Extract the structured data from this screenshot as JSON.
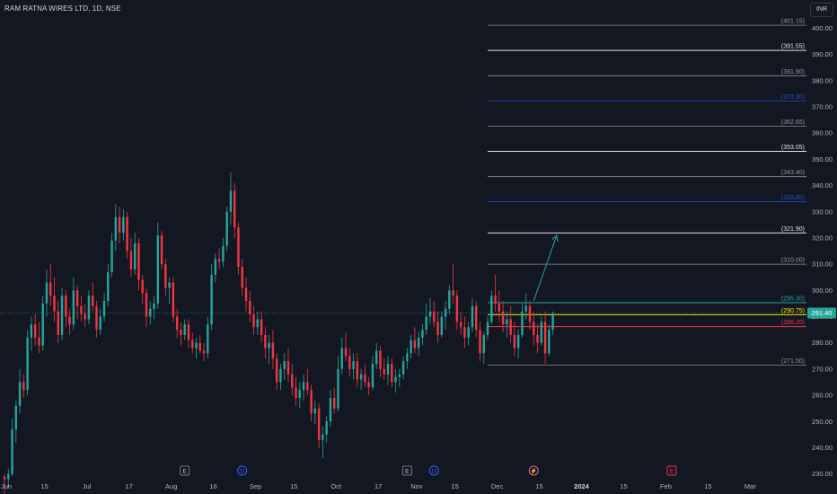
{
  "title": "RAM RATNA WIRES LTD, 1D, NSE",
  "currency": "INR",
  "chart_data": {
    "type": "candlestick",
    "y_axis": {
      "ticks": [
        230,
        240,
        250,
        260,
        270,
        280,
        290,
        300,
        310,
        320,
        330,
        340,
        350,
        360,
        370,
        380,
        390,
        400
      ],
      "labels": [
        "230.00",
        "240.00",
        "250.00",
        "260.00",
        "270.00",
        "280.00",
        "290.00",
        "300.00",
        "310.00",
        "320.00",
        "330.00",
        "340.00",
        "350.00",
        "360.00",
        "370.00",
        "380.00",
        "390.00",
        "400.00"
      ],
      "ylim": [
        228.5,
        406
      ]
    },
    "x_axis": {
      "labels": [
        {
          "text": "Jun",
          "bold": false,
          "idx": 0
        },
        {
          "text": "15",
          "bold": false,
          "idx": 10
        },
        {
          "text": "Jul",
          "bold": false,
          "idx": 21
        },
        {
          "text": "17",
          "bold": false,
          "idx": 32
        },
        {
          "text": "Aug",
          "bold": false,
          "idx": 43
        },
        {
          "text": "16",
          "bold": false,
          "idx": 54
        },
        {
          "text": "Sep",
          "bold": false,
          "idx": 65
        },
        {
          "text": "15",
          "bold": false,
          "idx": 75
        },
        {
          "text": "Oct",
          "bold": false,
          "idx": 86
        },
        {
          "text": "17",
          "bold": false,
          "idx": 97
        },
        {
          "text": "Nov",
          "bold": false,
          "idx": 107
        },
        {
          "text": "15",
          "bold": false,
          "idx": 117
        },
        {
          "text": "Dec",
          "bold": false,
          "idx": 128
        },
        {
          "text": "15",
          "bold": false,
          "idx": 139
        },
        {
          "text": "2024",
          "bold": true,
          "idx": 150
        },
        {
          "text": "15",
          "bold": false,
          "idx": 161
        },
        {
          "text": "Feb",
          "bold": false,
          "idx": 172
        },
        {
          "text": "15",
          "bold": false,
          "idx": 183
        },
        {
          "text": "Mar",
          "bold": false,
          "idx": 194
        }
      ]
    },
    "last_price": 291.4,
    "levels": [
      {
        "price": 401.15,
        "label": "(401.15)",
        "color": "#b2b5be",
        "dim": true
      },
      {
        "price": 391.55,
        "label": "(391.55)",
        "color": "#e0e3eb",
        "dim": false
      },
      {
        "price": 381.9,
        "label": "(381.90)",
        "color": "#b2b5be",
        "dim": true
      },
      {
        "price": 372.3,
        "label": "(372.30)",
        "color": "#2962ff",
        "dim": true
      },
      {
        "price": 362.65,
        "label": "(362.65)",
        "color": "#b2b5be",
        "dim": true
      },
      {
        "price": 353.05,
        "label": "(353.05)",
        "color": "#e0e3eb",
        "dim": false
      },
      {
        "price": 343.4,
        "label": "(343.40)",
        "color": "#b2b5be",
        "dim": true
      },
      {
        "price": 333.8,
        "label": "(333.80)",
        "color": "#2962ff",
        "dim": true
      },
      {
        "price": 321.9,
        "label": "(321.90)",
        "color": "#e0e3eb",
        "dim": false
      },
      {
        "price": 310.0,
        "label": "(310.00)",
        "color": "#b2b5be",
        "dim": true
      },
      {
        "price": 295.3,
        "label": "(295.30)",
        "color": "#26a69a",
        "dim": false
      },
      {
        "price": 290.75,
        "label": "(290.75)",
        "color": "#f7e600",
        "dim": false
      },
      {
        "price": 286.2,
        "label": "(286.20)",
        "color": "#f23645",
        "dim": false
      },
      {
        "price": 271.5,
        "label": "(271.50)",
        "color": "#b2b5be",
        "dim": true
      }
    ],
    "arrow": {
      "from_idx": 138,
      "from_price": 296,
      "to_idx": 144,
      "to_price": 321
    },
    "event_markers": [
      {
        "type": "E",
        "idx": 47
      },
      {
        "type": "D",
        "idx": 62
      },
      {
        "type": "E",
        "idx": 105
      },
      {
        "type": "D",
        "idx": 112
      },
      {
        "type": "⚡",
        "idx": 138
      },
      {
        "type": "E",
        "idx": 174
      }
    ],
    "candles": [
      [
        229,
        230,
        221,
        228
      ],
      [
        228,
        232,
        225,
        230
      ],
      [
        230,
        251,
        229,
        247
      ],
      [
        247,
        258,
        242,
        256
      ],
      [
        256,
        270,
        253,
        265
      ],
      [
        265,
        268,
        259,
        262
      ],
      [
        262,
        285,
        260,
        282
      ],
      [
        282,
        290,
        277,
        287
      ],
      [
        287,
        291,
        279,
        282
      ],
      [
        282,
        288,
        276,
        279
      ],
      [
        279,
        298,
        277,
        295
      ],
      [
        295,
        308,
        290,
        303
      ],
      [
        303,
        310,
        294,
        298
      ],
      [
        298,
        305,
        288,
        292
      ],
      [
        292,
        296,
        280,
        283
      ],
      [
        283,
        301,
        281,
        298
      ],
      [
        298,
        300,
        286,
        290
      ],
      [
        290,
        293,
        283,
        287
      ],
      [
        287,
        305,
        285,
        300
      ],
      [
        300,
        302,
        289,
        294
      ],
      [
        294,
        298,
        288,
        291
      ],
      [
        291,
        295,
        286,
        289
      ],
      [
        289,
        300,
        287,
        298
      ],
      [
        298,
        303,
        292,
        294
      ],
      [
        294,
        296,
        282,
        285
      ],
      [
        285,
        293,
        283,
        290
      ],
      [
        290,
        299,
        288,
        296
      ],
      [
        296,
        310,
        294,
        307
      ],
      [
        307,
        322,
        305,
        319
      ],
      [
        319,
        333,
        315,
        328
      ],
      [
        328,
        332,
        318,
        322
      ],
      [
        322,
        331,
        319,
        328
      ],
      [
        328,
        330,
        312,
        315
      ],
      [
        315,
        320,
        305,
        308
      ],
      [
        308,
        322,
        306,
        318
      ],
      [
        318,
        320,
        300,
        304
      ],
      [
        304,
        306,
        295,
        299
      ],
      [
        299,
        301,
        286,
        290
      ],
      [
        290,
        296,
        287,
        293
      ],
      [
        293,
        298,
        289,
        295
      ],
      [
        295,
        326,
        293,
        321
      ],
      [
        321,
        323,
        308,
        310
      ],
      [
        310,
        312,
        298,
        301
      ],
      [
        301,
        305,
        295,
        303
      ],
      [
        303,
        305,
        288,
        290
      ],
      [
        290,
        293,
        282,
        285
      ],
      [
        285,
        288,
        279,
        283
      ],
      [
        283,
        289,
        281,
        287
      ],
      [
        287,
        289,
        278,
        281
      ],
      [
        281,
        284,
        276,
        278
      ],
      [
        278,
        282,
        274,
        280
      ],
      [
        280,
        283,
        276,
        277
      ],
      [
        277,
        280,
        273,
        276
      ],
      [
        276,
        290,
        274,
        287
      ],
      [
        287,
        310,
        285,
        306
      ],
      [
        306,
        314,
        303,
        312
      ],
      [
        312,
        316,
        308,
        311
      ],
      [
        311,
        320,
        309,
        317
      ],
      [
        317,
        332,
        315,
        330
      ],
      [
        330,
        345,
        325,
        338
      ],
      [
        338,
        341,
        320,
        324
      ],
      [
        324,
        326,
        306,
        309
      ],
      [
        309,
        312,
        298,
        301
      ],
      [
        301,
        305,
        292,
        296
      ],
      [
        296,
        300,
        288,
        291
      ],
      [
        291,
        294,
        283,
        286
      ],
      [
        286,
        292,
        283,
        289
      ],
      [
        289,
        292,
        280,
        283
      ],
      [
        283,
        286,
        274,
        278
      ],
      [
        278,
        283,
        272,
        280
      ],
      [
        280,
        285,
        270,
        274
      ],
      [
        274,
        276,
        262,
        265
      ],
      [
        265,
        272,
        262,
        270
      ],
      [
        270,
        276,
        266,
        273
      ],
      [
        273,
        278,
        265,
        268
      ],
      [
        268,
        272,
        260,
        263
      ],
      [
        263,
        267,
        256,
        259
      ],
      [
        259,
        265,
        255,
        262
      ],
      [
        262,
        268,
        258,
        265
      ],
      [
        265,
        270,
        260,
        262
      ],
      [
        262,
        264,
        250,
        253
      ],
      [
        253,
        258,
        249,
        255
      ],
      [
        255,
        257,
        240,
        243
      ],
      [
        243,
        248,
        236,
        245
      ],
      [
        245,
        252,
        242,
        250
      ],
      [
        250,
        262,
        248,
        259
      ],
      [
        259,
        263,
        253,
        255
      ],
      [
        255,
        275,
        254,
        270
      ],
      [
        270,
        282,
        268,
        278
      ],
      [
        278,
        284,
        273,
        275
      ],
      [
        275,
        278,
        267,
        270
      ],
      [
        270,
        276,
        266,
        273
      ],
      [
        273,
        276,
        263,
        266
      ],
      [
        266,
        270,
        262,
        268
      ],
      [
        268,
        272,
        263,
        265
      ],
      [
        265,
        267,
        260,
        263
      ],
      [
        263,
        275,
        262,
        272
      ],
      [
        272,
        280,
        270,
        277
      ],
      [
        277,
        279,
        267,
        270
      ],
      [
        270,
        274,
        266,
        268
      ],
      [
        268,
        275,
        264,
        272
      ],
      [
        272,
        274,
        263,
        265
      ],
      [
        265,
        270,
        261,
        267
      ],
      [
        267,
        270,
        263,
        268
      ],
      [
        268,
        275,
        266,
        273
      ],
      [
        273,
        278,
        270,
        276
      ],
      [
        276,
        283,
        274,
        281
      ],
      [
        281,
        286,
        276,
        278
      ],
      [
        278,
        284,
        275,
        282
      ],
      [
        282,
        287,
        279,
        285
      ],
      [
        285,
        295,
        283,
        290
      ],
      [
        290,
        297,
        287,
        292
      ],
      [
        292,
        296,
        286,
        288
      ],
      [
        288,
        292,
        280,
        283
      ],
      [
        283,
        292,
        282,
        290
      ],
      [
        290,
        296,
        285,
        293
      ],
      [
        293,
        302,
        291,
        300
      ],
      [
        300,
        310,
        295,
        298
      ],
      [
        298,
        300,
        285,
        288
      ],
      [
        288,
        292,
        283,
        286
      ],
      [
        286,
        290,
        278,
        282
      ],
      [
        282,
        288,
        279,
        286
      ],
      [
        286,
        297,
        284,
        294
      ],
      [
        294,
        296,
        282,
        285
      ],
      [
        285,
        288,
        273,
        276
      ],
      [
        276,
        284,
        272,
        283
      ],
      [
        283,
        290,
        281,
        288
      ],
      [
        288,
        300,
        287,
        298
      ],
      [
        298,
        306,
        292,
        295
      ],
      [
        295,
        300,
        288,
        292
      ],
      [
        292,
        296,
        284,
        287
      ],
      [
        287,
        292,
        282,
        289
      ],
      [
        289,
        294,
        280,
        283
      ],
      [
        283,
        288,
        275,
        278
      ],
      [
        278,
        285,
        274,
        283
      ],
      [
        283,
        295,
        282,
        292
      ],
      [
        292,
        299,
        289,
        294
      ],
      [
        294,
        296,
        285,
        288
      ],
      [
        288,
        292,
        279,
        283
      ],
      [
        283,
        287,
        276,
        280
      ],
      [
        280,
        290,
        279,
        288
      ],
      [
        288,
        292,
        272,
        276
      ],
      [
        276,
        287,
        275,
        285
      ],
      [
        285,
        292,
        283,
        291.4
      ]
    ]
  }
}
